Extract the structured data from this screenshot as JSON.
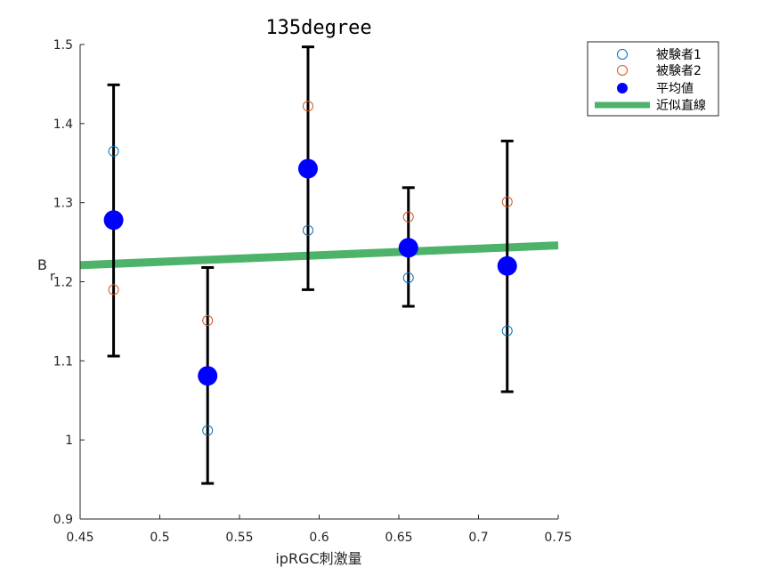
{
  "chart_data": {
    "type": "scatter",
    "title": "135degree",
    "xlabel": "ipRGC刺激量",
    "ylabel_main": "B",
    "ylabel_sub": "r",
    "xlim": [
      0.45,
      0.75
    ],
    "ylim": [
      0.9,
      1.5
    ],
    "xticks": [
      "0.45",
      "0.5",
      "0.55",
      "0.6",
      "0.65",
      "0.7",
      "0.75"
    ],
    "yticks": [
      "0.9",
      "1",
      "1.1",
      "1.2",
      "1.3",
      "1.4",
      "1.5"
    ],
    "grid": false,
    "legend_position": "top-right-outside",
    "series": [
      {
        "name": "被験者1",
        "kind": "open-circle",
        "color": "#0072BD",
        "x": [
          0.471,
          0.53,
          0.593,
          0.656,
          0.718
        ],
        "y": [
          1.365,
          1.012,
          1.265,
          1.205,
          1.138
        ]
      },
      {
        "name": "被験者2",
        "kind": "open-circle",
        "color": "#D95319",
        "x": [
          0.471,
          0.53,
          0.593,
          0.656,
          0.718
        ],
        "y": [
          1.19,
          1.151,
          1.422,
          1.282,
          1.301
        ]
      },
      {
        "name": "平均値",
        "kind": "filled-circle",
        "color": "#0000FF",
        "x": [
          0.471,
          0.53,
          0.593,
          0.656,
          0.718
        ],
        "y": [
          1.278,
          1.081,
          1.343,
          1.243,
          1.22
        ],
        "err_low": [
          1.106,
          0.945,
          1.19,
          1.169,
          1.061
        ],
        "err_high": [
          1.449,
          1.218,
          1.497,
          1.319,
          1.378
        ]
      },
      {
        "name": "近似直線",
        "kind": "line",
        "color": "#4DB36A",
        "x": [
          0.45,
          0.75
        ],
        "y": [
          1.221,
          1.246
        ]
      }
    ]
  }
}
